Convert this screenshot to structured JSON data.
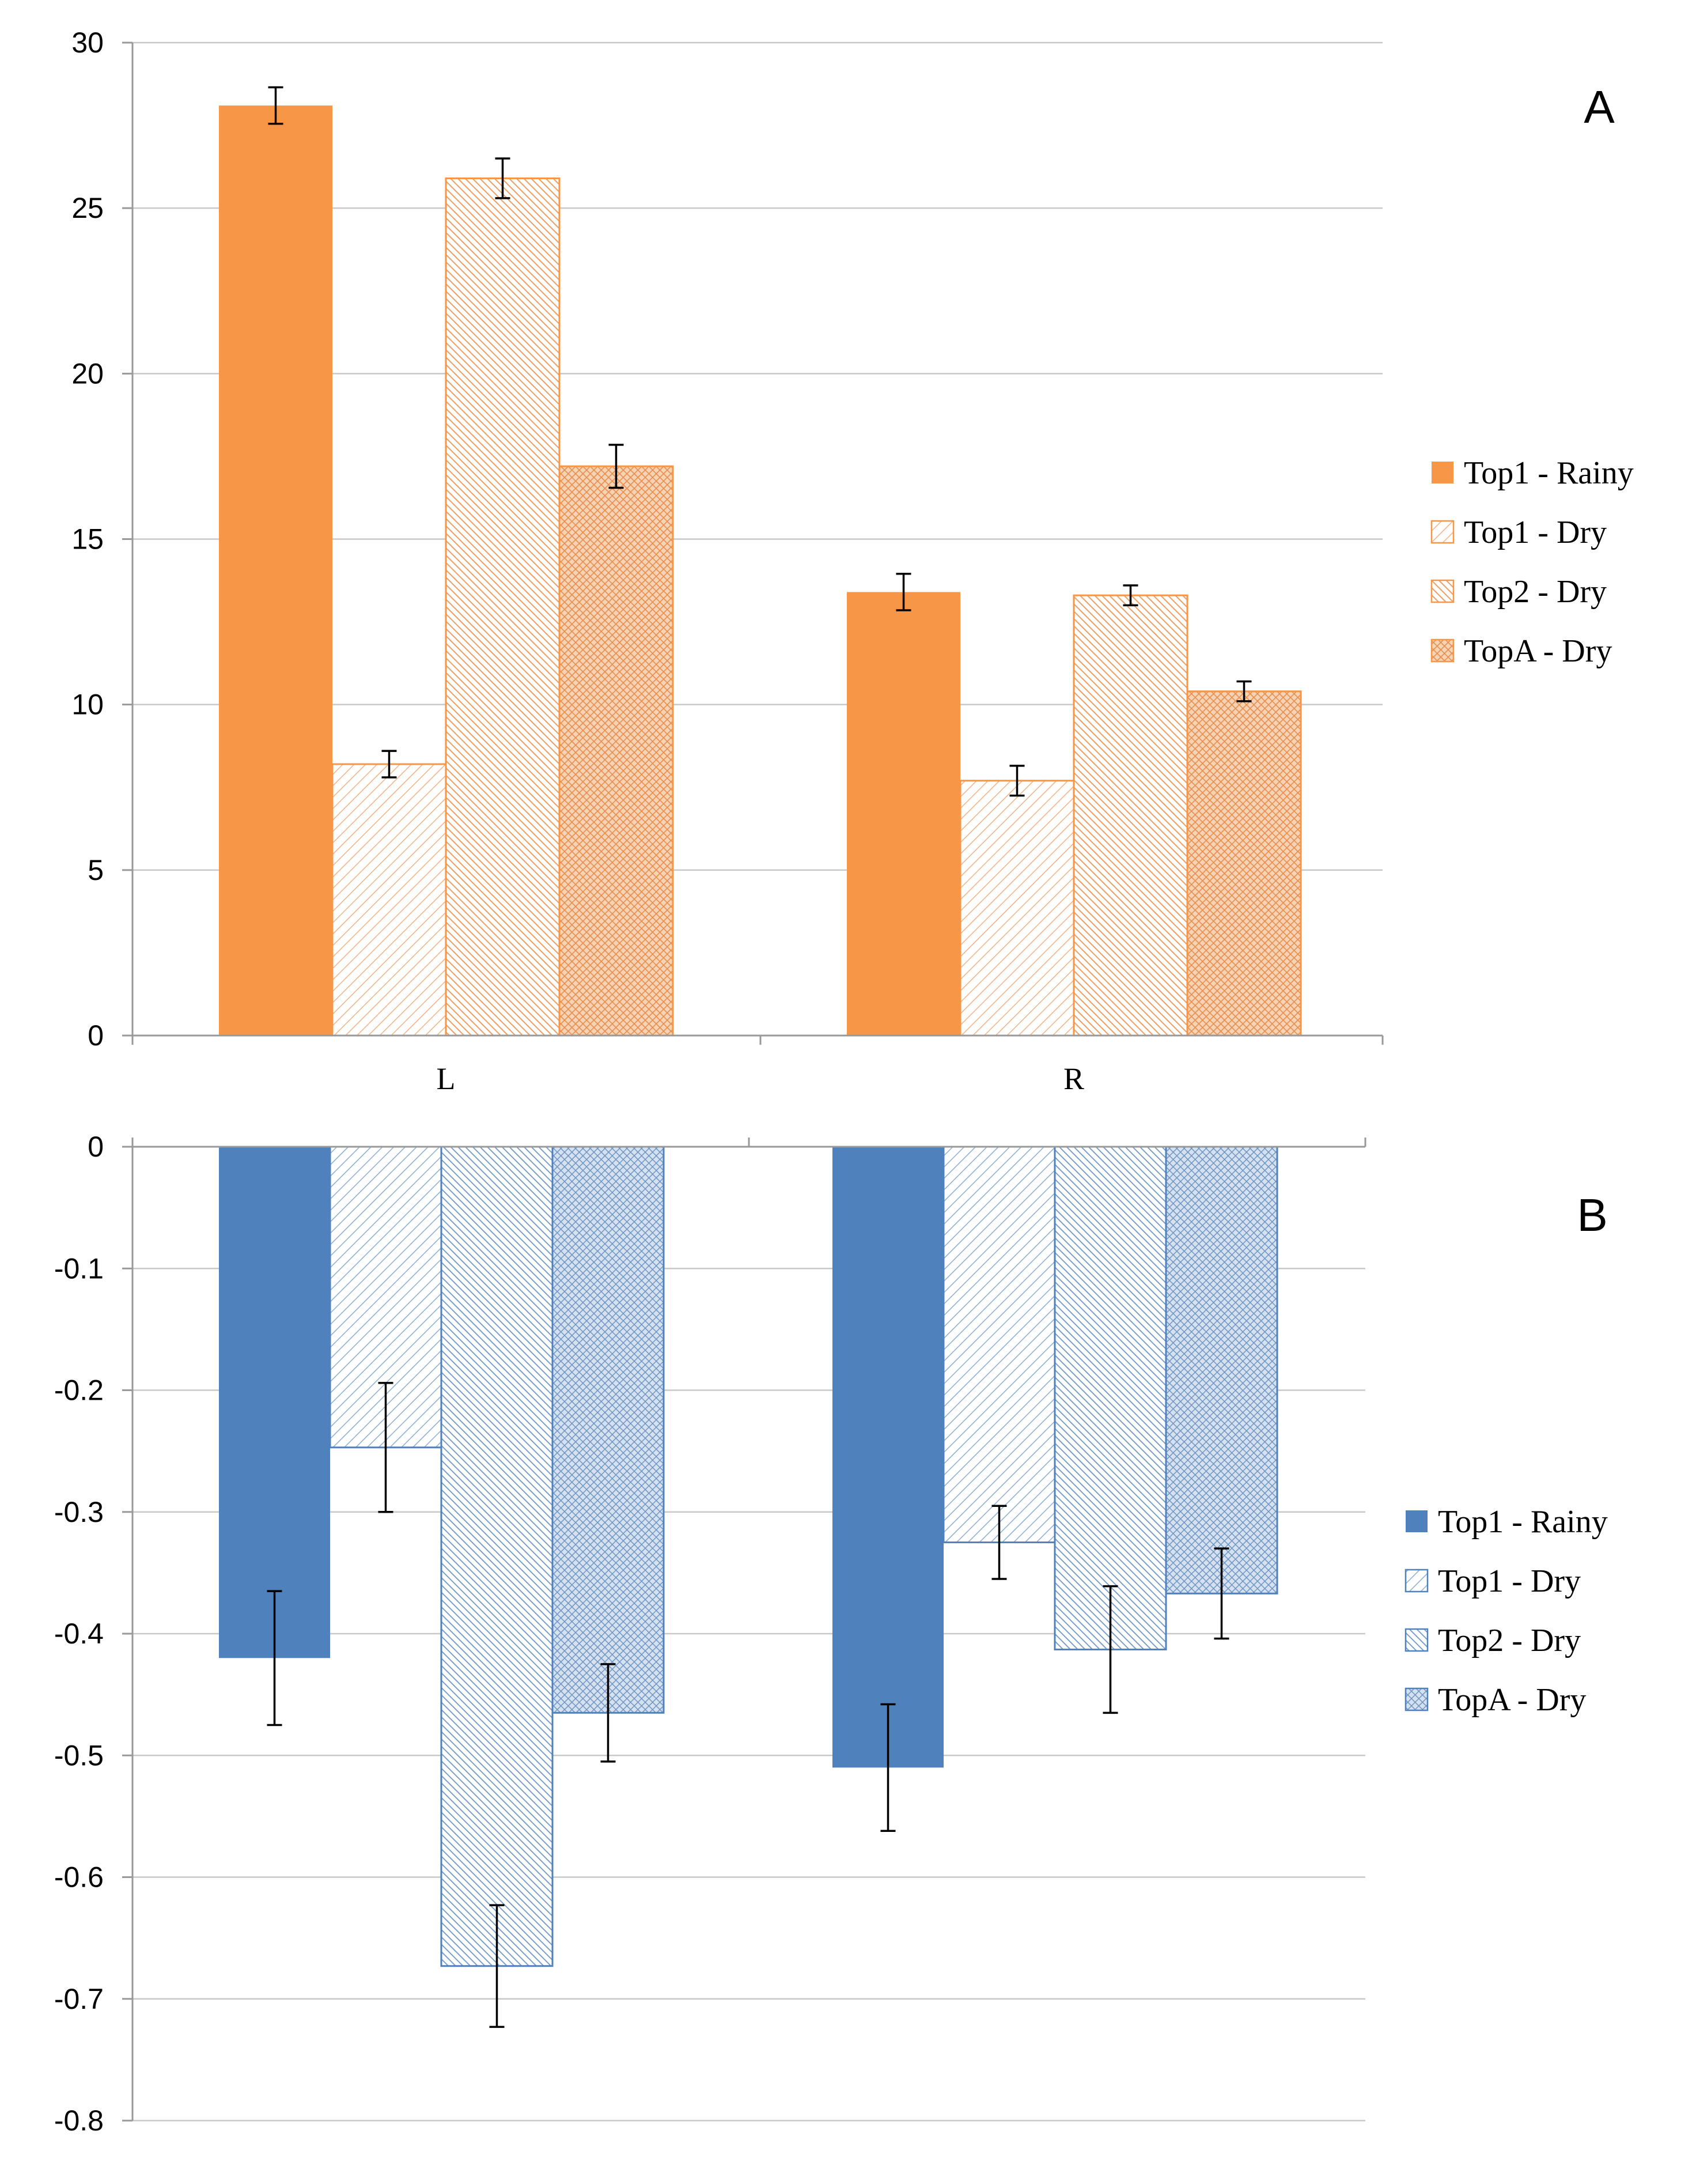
{
  "chart_data": [
    {
      "type": "bar",
      "panel_label": "A",
      "categories": [
        "L",
        "R"
      ],
      "ylim": [
        0,
        30
      ],
      "yticks": [
        0,
        5,
        10,
        15,
        20,
        25,
        30
      ],
      "ytick_labels": [
        "0",
        "5",
        "10",
        "15",
        "20",
        "25",
        "30"
      ],
      "grid": true,
      "legend_position": "right",
      "color": "#f79646",
      "series": [
        {
          "name": "Top1 - Rainy",
          "fill": "solid",
          "values": [
            28.1,
            13.4
          ],
          "errors": [
            0.55,
            0.55
          ]
        },
        {
          "name": "Top1 - Dry",
          "fill": "light-diagonal",
          "values": [
            8.2,
            7.7
          ],
          "errors": [
            0.4,
            0.45
          ]
        },
        {
          "name": "Top2 - Dry",
          "fill": "dense-diagonal",
          "values": [
            25.9,
            13.3
          ],
          "errors": [
            0.6,
            0.3
          ]
        },
        {
          "name": "TopA - Dry",
          "fill": "crosshatch",
          "values": [
            17.2,
            10.4
          ],
          "errors": [
            0.65,
            0.3
          ]
        }
      ]
    },
    {
      "type": "bar",
      "panel_label": "B",
      "categories": [
        "L",
        "R"
      ],
      "ylim": [
        -0.8,
        0
      ],
      "yticks": [
        0,
        -0.1,
        -0.2,
        -0.3,
        -0.4,
        -0.5,
        -0.6,
        -0.7,
        -0.8
      ],
      "ytick_labels": [
        "0",
        "-0.1",
        "-0.2",
        "-0.3",
        "-0.4",
        "-0.5",
        "-0.6",
        "-0.7",
        "-0.8"
      ],
      "grid": true,
      "legend_position": "right",
      "color": "#4f81bd",
      "series": [
        {
          "name": "Top1 - Rainy",
          "fill": "solid",
          "values": [
            -0.42,
            -0.51
          ],
          "errors": [
            0.055,
            0.052
          ]
        },
        {
          "name": "Top1 - Dry",
          "fill": "light-diagonal",
          "values": [
            -0.247,
            -0.325
          ],
          "errors": [
            0.053,
            0.03
          ]
        },
        {
          "name": "Top2 - Dry",
          "fill": "dense-diagonal",
          "values": [
            -0.673,
            -0.413
          ],
          "errors": [
            0.05,
            0.052
          ]
        },
        {
          "name": "TopA - Dry",
          "fill": "crosshatch",
          "values": [
            -0.465,
            -0.367
          ],
          "errors": [
            0.04,
            0.037
          ]
        }
      ]
    }
  ]
}
